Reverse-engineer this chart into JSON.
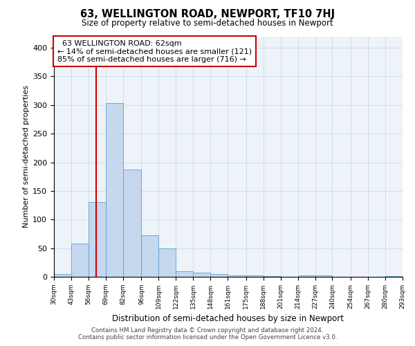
{
  "title": "63, WELLINGTON ROAD, NEWPORT, TF10 7HJ",
  "subtitle": "Size of property relative to semi-detached houses in Newport",
  "xlabel": "Distribution of semi-detached houses by size in Newport",
  "ylabel": "Number of semi-detached properties",
  "annotation_line1": "63 WELLINGTON ROAD: 62sqm",
  "annotation_line2": "← 14% of semi-detached houses are smaller (121)",
  "annotation_line3": "85% of semi-detached houses are larger (716) →",
  "footer_line1": "Contains HM Land Registry data © Crown copyright and database right 2024.",
  "footer_line2": "Contains public sector information licensed under the Open Government Licence v3.0.",
  "property_size": 62,
  "bar_color": "#c5d8ee",
  "bar_edge_color": "#5a9fd4",
  "vline_color": "#cc0000",
  "annotation_box_color": "#cc0000",
  "grid_color": "#ccd9e8",
  "background_color": "#eef3fa",
  "bins": [
    30,
    43,
    56,
    69,
    82,
    96,
    109,
    122,
    135,
    148,
    161,
    175,
    188,
    201,
    214,
    227,
    240,
    254,
    267,
    280,
    293
  ],
  "counts": [
    5,
    58,
    130,
    303,
    187,
    72,
    49,
    10,
    7,
    5,
    3,
    3,
    1,
    0,
    2,
    3,
    0,
    0,
    0,
    1
  ],
  "ylim": [
    0,
    420
  ],
  "yticks": [
    0,
    50,
    100,
    150,
    200,
    250,
    300,
    350,
    400
  ]
}
